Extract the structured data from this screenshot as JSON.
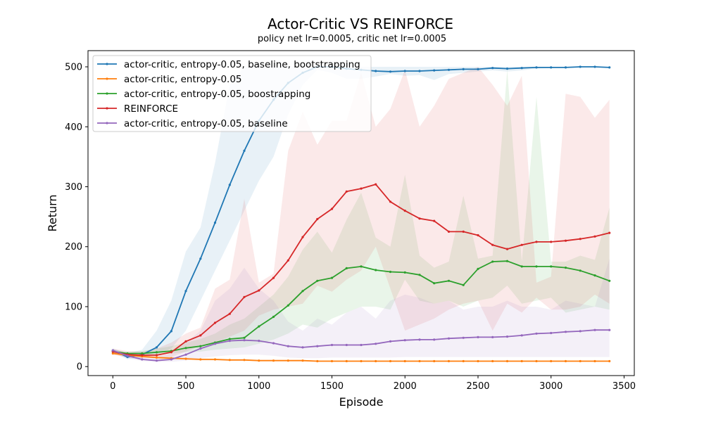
{
  "chart_data": {
    "type": "line",
    "title": "Actor-Critic VS REINFORCE",
    "subtitle": "policy net lr=0.0005, critic net lr=0.0005",
    "xlabel": "Episode",
    "ylabel": "Return",
    "xlim": [
      -170,
      3570
    ],
    "ylim": [
      -15,
      527
    ],
    "xticks": [
      0,
      500,
      1000,
      1500,
      2000,
      2500,
      3000,
      3500
    ],
    "yticks": [
      0,
      100,
      200,
      300,
      400,
      500
    ],
    "grid": false,
    "legend_position": "upper-left",
    "x": [
      0,
      100,
      200,
      300,
      400,
      500,
      600,
      700,
      800,
      900,
      1000,
      1100,
      1200,
      1300,
      1400,
      1500,
      1600,
      1700,
      1800,
      1900,
      2000,
      2100,
      2200,
      2300,
      2400,
      2500,
      2600,
      2700,
      2800,
      2900,
      3000,
      3100,
      3200,
      3300,
      3400
    ],
    "series": [
      {
        "name": "actor-critic, entropy-0.05, baseline, bootstrapping",
        "color": "#1f77b4",
        "values": [
          27,
          16,
          20,
          32,
          59,
          126,
          180,
          240,
          303,
          360,
          410,
          445,
          473,
          490,
          500,
          500,
          497,
          495,
          493,
          492,
          493,
          493,
          494,
          495,
          496,
          496,
          498,
          497,
          498,
          499,
          499,
          499,
          500,
          500,
          499
        ],
        "upper": [
          30,
          22,
          28,
          60,
          110,
          192,
          232,
          340,
          470,
          500,
          500,
          500,
          500,
          500,
          500,
          500,
          500,
          500,
          500,
          500,
          500,
          500,
          500,
          500,
          500,
          500,
          500,
          500,
          500,
          500,
          500,
          500,
          500,
          500,
          500
        ],
        "lower": [
          24,
          12,
          15,
          20,
          30,
          60,
          110,
          160,
          210,
          260,
          310,
          350,
          420,
          470,
          495,
          490,
          480,
          480,
          484,
          488,
          485,
          486,
          478,
          488,
          490,
          492,
          494,
          492,
          494,
          497,
          498,
          498,
          499,
          499,
          499
        ]
      },
      {
        "name": "actor-critic, entropy-0.05",
        "color": "#ff7f0e",
        "values": [
          22,
          19,
          17,
          15,
          14,
          13,
          12,
          12,
          11,
          11,
          10,
          10,
          10,
          10,
          9,
          9,
          9,
          9,
          9,
          9,
          9,
          9,
          9,
          9,
          9,
          9,
          9,
          9,
          9,
          9,
          9,
          9,
          9,
          9,
          9
        ],
        "upper": [
          24,
          21,
          19,
          17,
          16,
          15,
          14,
          13,
          12,
          12,
          11,
          11,
          11,
          11,
          10,
          10,
          10,
          10,
          10,
          10,
          10,
          10,
          10,
          10,
          10,
          10,
          10,
          10,
          10,
          10,
          10,
          10,
          10,
          10,
          10
        ],
        "lower": [
          20,
          17,
          15,
          13,
          12,
          11,
          10,
          10,
          10,
          10,
          9,
          9,
          9,
          9,
          8,
          8,
          8,
          8,
          8,
          8,
          8,
          8,
          8,
          8,
          8,
          8,
          8,
          8,
          8,
          8,
          8,
          8,
          8,
          8,
          8
        ]
      },
      {
        "name": "actor-critic, entropy-0.05, boostrapping",
        "color": "#2ca02c",
        "values": [
          25,
          22,
          22,
          24,
          26,
          31,
          34,
          40,
          46,
          48,
          67,
          83,
          102,
          126,
          143,
          148,
          164,
          167,
          161,
          158,
          157,
          153,
          139,
          143,
          136,
          163,
          175,
          176,
          167,
          167,
          167,
          165,
          160,
          152,
          143
        ],
        "upper": [
          28,
          25,
          26,
          30,
          34,
          40,
          46,
          55,
          70,
          80,
          100,
          120,
          150,
          195,
          225,
          190,
          245,
          290,
          215,
          200,
          320,
          185,
          165,
          175,
          285,
          180,
          185,
          495,
          175,
          450,
          175,
          175,
          185,
          178,
          265
        ],
        "lower": [
          22,
          19,
          18,
          20,
          22,
          24,
          25,
          28,
          30,
          32,
          38,
          45,
          55,
          70,
          65,
          80,
          90,
          100,
          100,
          95,
          145,
          110,
          105,
          110,
          100,
          110,
          115,
          135,
          105,
          110,
          115,
          90,
          95,
          100,
          95
        ]
      },
      {
        "name": "REINFORCE",
        "color": "#d62728",
        "values": [
          25,
          20,
          19,
          19,
          24,
          42,
          52,
          73,
          88,
          116,
          127,
          148,
          177,
          216,
          246,
          263,
          292,
          297,
          304,
          275,
          260,
          247,
          243,
          225,
          225,
          219,
          203,
          196,
          203,
          208,
          208,
          210,
          213,
          217,
          223
        ],
        "upper": [
          30,
          26,
          25,
          30,
          40,
          55,
          65,
          130,
          145,
          280,
          140,
          155,
          360,
          425,
          370,
          410,
          410,
          490,
          400,
          430,
          495,
          400,
          435,
          480,
          490,
          500,
          470,
          435,
          485,
          140,
          150,
          455,
          450,
          415,
          445
        ],
        "lower": [
          20,
          15,
          14,
          14,
          16,
          25,
          35,
          40,
          50,
          60,
          85,
          95,
          100,
          105,
          135,
          125,
          145,
          160,
          200,
          130,
          60,
          70,
          80,
          95,
          105,
          110,
          60,
          105,
          90,
          115,
          95,
          95,
          100,
          120,
          105
        ]
      },
      {
        "name": "actor-critic, entropy-0.05, baseline",
        "color": "#9467bd",
        "values": [
          27,
          18,
          12,
          10,
          12,
          20,
          30,
          38,
          43,
          44,
          43,
          39,
          34,
          32,
          34,
          36,
          36,
          36,
          38,
          42,
          44,
          45,
          45,
          47,
          48,
          49,
          49,
          50,
          52,
          55,
          56,
          58,
          59,
          61,
          61
        ],
        "upper": [
          30,
          22,
          18,
          16,
          22,
          40,
          60,
          110,
          130,
          165,
          130,
          110,
          75,
          60,
          80,
          70,
          90,
          100,
          80,
          110,
          120,
          115,
          105,
          110,
          95,
          100,
          100,
          110,
          100,
          100,
          95,
          110,
          105,
          100,
          180
        ],
        "lower": [
          24,
          14,
          9,
          8,
          8,
          10,
          14,
          17,
          19,
          20,
          20,
          18,
          15,
          14,
          14,
          15,
          15,
          15,
          15,
          15,
          16,
          16,
          16,
          16,
          16,
          16,
          16,
          16,
          16,
          16,
          16,
          16,
          16,
          16,
          16
        ]
      }
    ]
  }
}
